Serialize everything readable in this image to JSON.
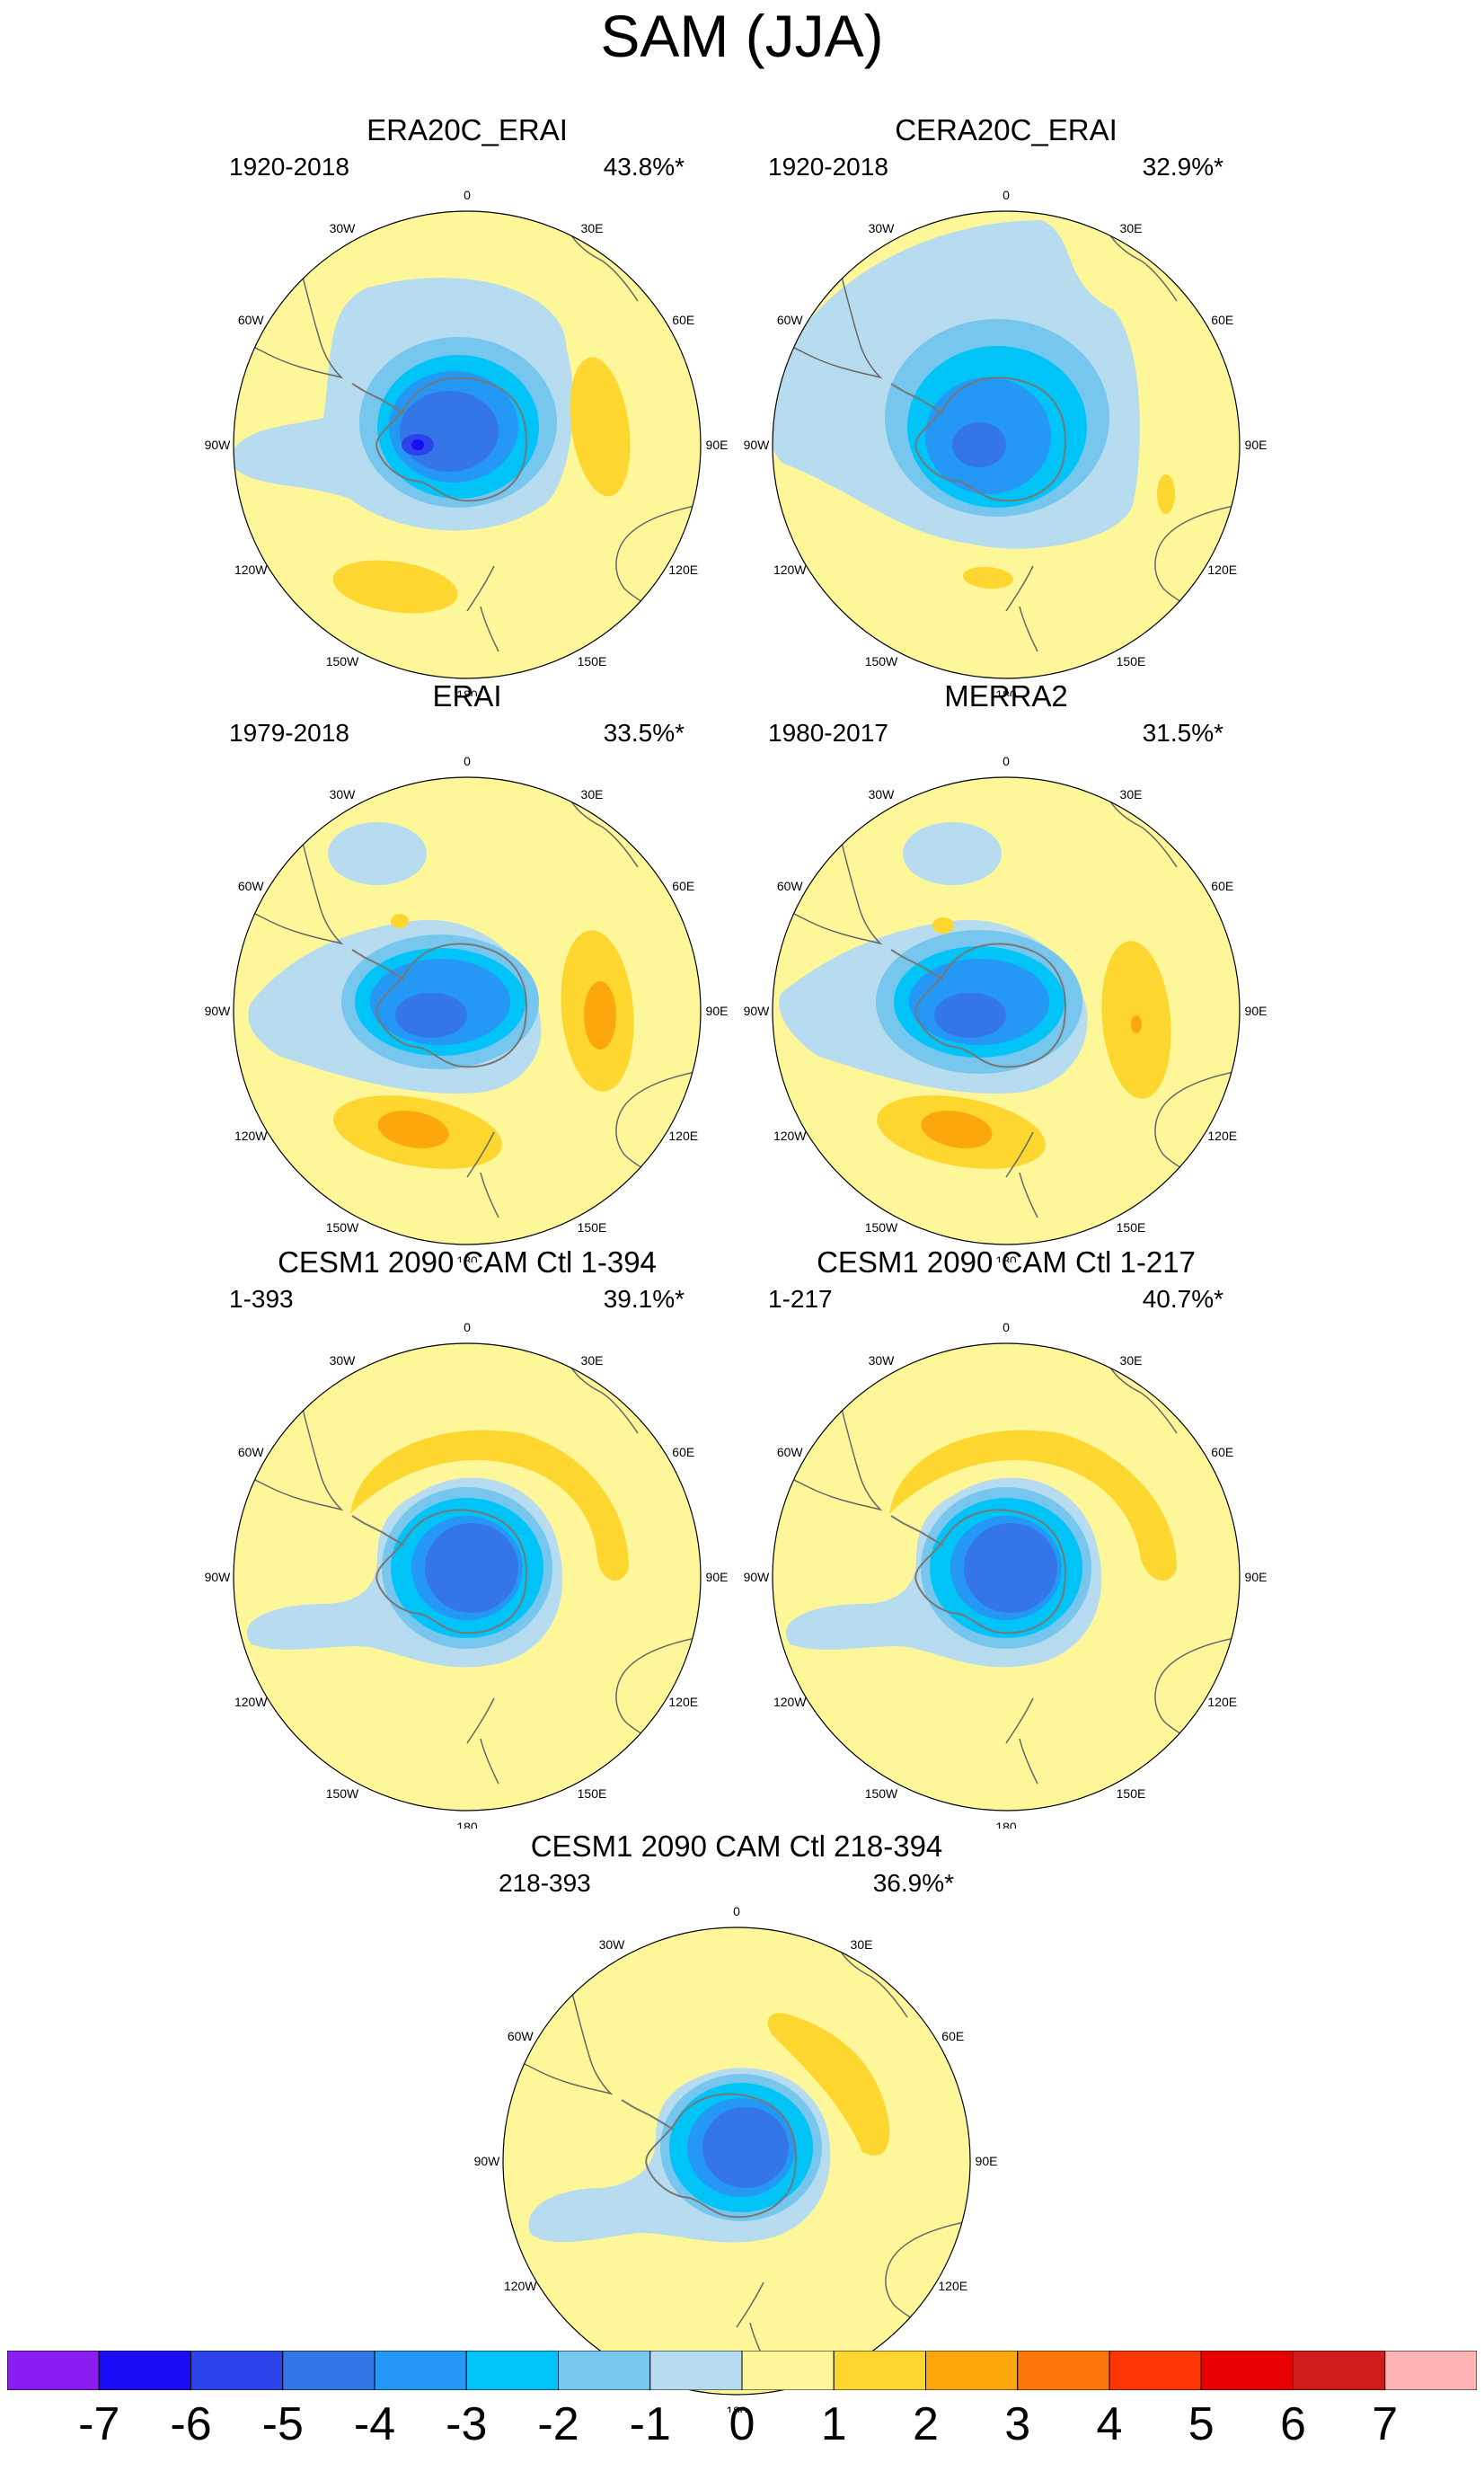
{
  "title": "SAM (JJA)",
  "panels": [
    {
      "title": "ERA20C_ERAI",
      "period": "1920-2018",
      "variance": "43.8%*"
    },
    {
      "title": "CERA20C_ERAI",
      "period": "1920-2018",
      "variance": "32.9%*"
    },
    {
      "title": "ERAI",
      "period": "1979-2018",
      "variance": "33.5%*"
    },
    {
      "title": "MERRA2",
      "period": "1980-2017",
      "variance": "31.5%*"
    },
    {
      "title": "CESM1 2090 CAM Ctl 1-394",
      "period": "1-393",
      "variance": "39.1%*"
    },
    {
      "title": "CESM1 2090 CAM Ctl 1-217",
      "period": "1-217",
      "variance": "40.7%*"
    },
    {
      "title": "CESM1 2090 CAM Ctl 218-394",
      "period": "218-393",
      "variance": "36.9%*"
    }
  ],
  "longitude_labels": [
    "0",
    "30E",
    "60E",
    "90E",
    "120E",
    "150E",
    "180",
    "150W",
    "120W",
    "90W",
    "60W",
    "30W"
  ],
  "colorbar": {
    "levels": [
      "-7",
      "-6",
      "-5",
      "-4",
      "-3",
      "-2",
      "-1",
      "0",
      "1",
      "2",
      "3",
      "4",
      "5",
      "6",
      "7"
    ],
    "colors": [
      "#8a1ef0",
      "#1a0cf5",
      "#2d43ea",
      "#3475e8",
      "#2597f5",
      "#00c3f8",
      "#77c6ee",
      "#b7dcef",
      "#fdf79a",
      "#fdd62f",
      "#fca80c",
      "#fd7408",
      "#fd3502",
      "#e80000",
      "#d01c1c",
      "#fdb3b3"
    ]
  },
  "palette": {
    "ocean_base": "#fdf79a",
    "neg1": "#b7dcef",
    "neg2": "#77c6ee",
    "neg3": "#00c3f8",
    "neg4": "#2597f5",
    "neg5": "#3475e8",
    "neg6": "#2d43ea",
    "neg7": "#1a0cf5",
    "pos1": "#fdd62f",
    "pos2": "#fca80c"
  }
}
